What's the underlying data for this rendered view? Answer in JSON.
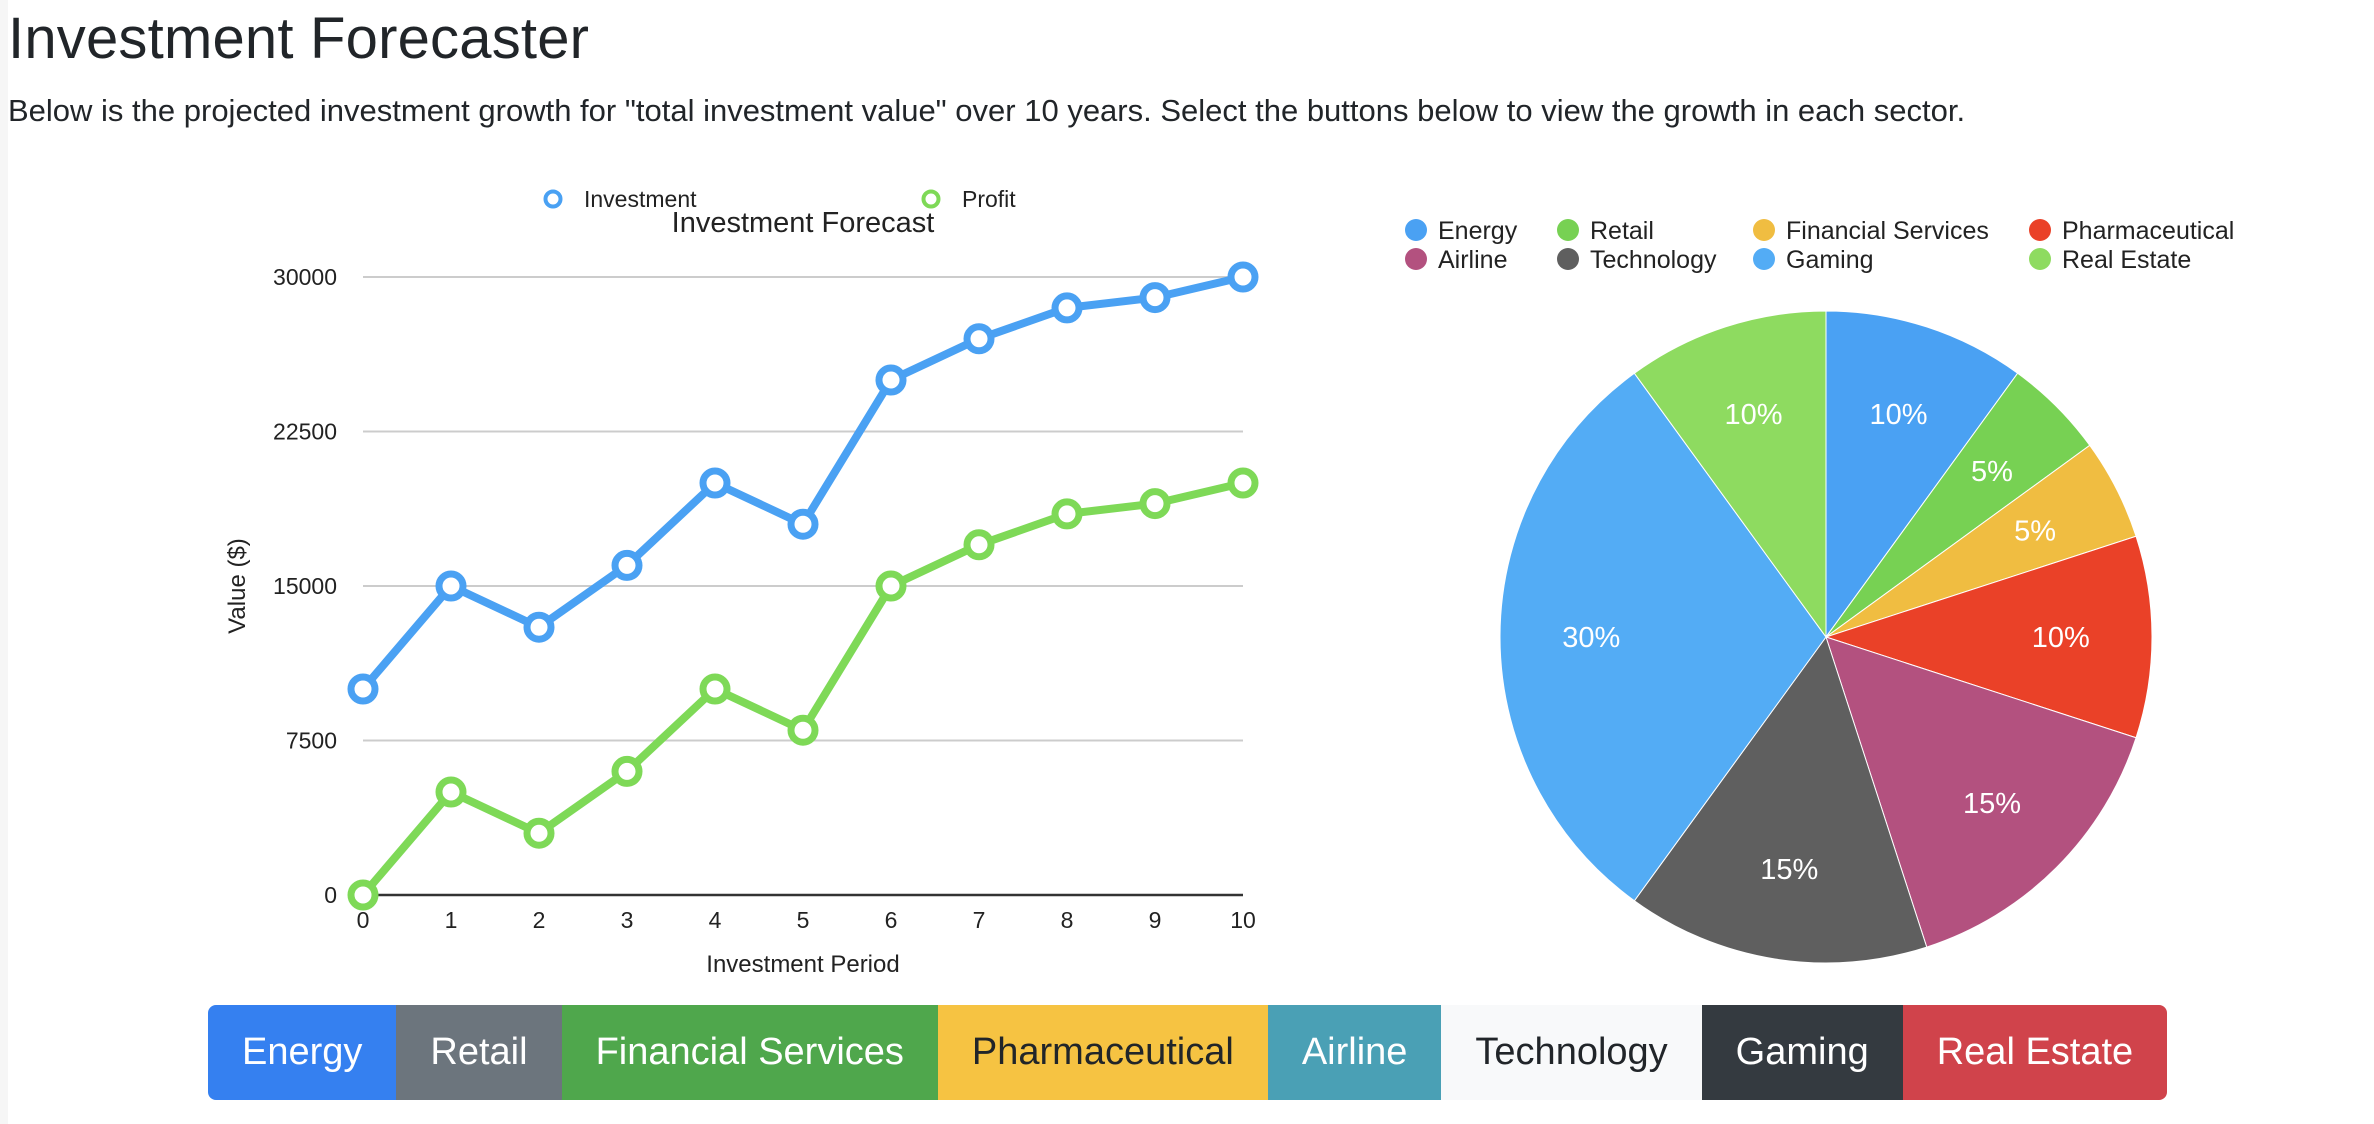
{
  "header": {
    "title": "Investment Forecaster",
    "description": "Below is the projected investment growth for \"total investment value\" over 10 years. Select the buttons below to view the growth in each sector."
  },
  "chart_data": [
    {
      "type": "line",
      "title": "Investment Forecast",
      "xlabel": "Investment Period",
      "ylabel": "Value ($)",
      "x": [
        0,
        1,
        2,
        3,
        4,
        5,
        6,
        7,
        8,
        9,
        10
      ],
      "ylim": [
        0,
        30000
      ],
      "yticks": [
        0,
        7500,
        15000,
        22500,
        30000
      ],
      "grid": true,
      "legend_position": "top",
      "series": [
        {
          "name": "Investment",
          "color": "#4aa1f3",
          "values": [
            10000,
            15000,
            13000,
            16000,
            20000,
            18000,
            25000,
            27000,
            28500,
            29000,
            30000
          ]
        },
        {
          "name": "Profit",
          "color": "#7ed957",
          "values": [
            0,
            5000,
            3000,
            6000,
            10000,
            8000,
            15000,
            17000,
            18500,
            19000,
            20000
          ]
        }
      ]
    },
    {
      "type": "pie",
      "legend_position": "top",
      "slices": [
        {
          "label": "Energy",
          "value": 10,
          "color": "#4aa1f3"
        },
        {
          "label": "Retail",
          "value": 5,
          "color": "#77d153"
        },
        {
          "label": "Financial Services",
          "value": 5,
          "color": "#f0bd41"
        },
        {
          "label": "Pharmaceutical",
          "value": 10,
          "color": "#ea4128"
        },
        {
          "label": "Airline",
          "value": 15,
          "color": "#b3517f"
        },
        {
          "label": "Technology",
          "value": 15,
          "color": "#5f5f5f"
        },
        {
          "label": "Gaming",
          "value": 30,
          "color": "#53acf5"
        },
        {
          "label": "Real Estate",
          "value": 10,
          "color": "#8edb60"
        }
      ]
    }
  ],
  "sector_buttons": [
    {
      "label": "Energy",
      "bg": "#3580f0",
      "fg": "#ffffff"
    },
    {
      "label": "Retail",
      "bg": "#6c757d",
      "fg": "#ffffff"
    },
    {
      "label": "Financial Services",
      "bg": "#4fa74c",
      "fg": "#ffffff"
    },
    {
      "label": "Pharmaceutical",
      "bg": "#f6c342",
      "fg": "#212529"
    },
    {
      "label": "Airline",
      "bg": "#4aa0b5",
      "fg": "#ffffff"
    },
    {
      "label": "Technology",
      "bg": "#f8f9fa",
      "fg": "#212529"
    },
    {
      "label": "Gaming",
      "bg": "#343a40",
      "fg": "#ffffff"
    },
    {
      "label": "Real Estate",
      "bg": "#d0434b",
      "fg": "#ffffff"
    }
  ]
}
